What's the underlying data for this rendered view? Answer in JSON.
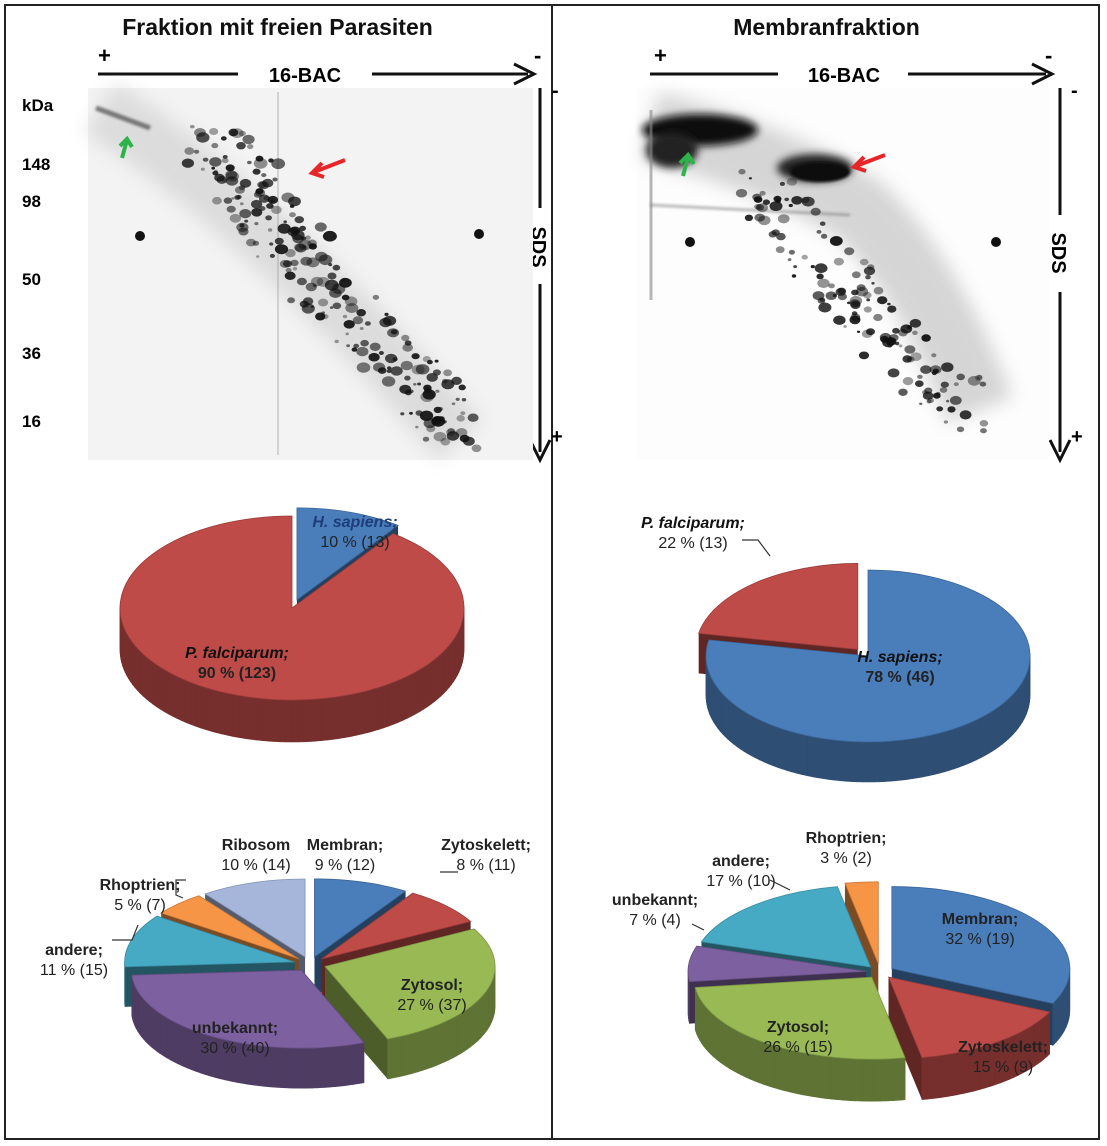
{
  "left_panel": {
    "title": "Fraktion mit freien Parasiten",
    "axis_top": {
      "label": "16-BAC",
      "start_sign": "+",
      "end_sign": "-"
    },
    "axis_right": {
      "label": "SDS",
      "start_sign": "-",
      "end_sign": "+"
    },
    "mw_unit": "kDa",
    "mw_markers": [
      "148",
      "98",
      "50",
      "36",
      "16"
    ]
  },
  "right_panel": {
    "title": "Membranfraktion",
    "axis_top": {
      "label": "16-BAC",
      "start_sign": "+",
      "end_sign": "-"
    },
    "axis_right": {
      "label": "SDS",
      "start_sign": "-",
      "end_sign": "+"
    }
  },
  "colors": {
    "h_sapiens": "#4a7ebb",
    "p_falciparum": "#be4b48",
    "membran": "#4a7ebb",
    "zytoskelett": "#be4b48",
    "zytosol": "#98b954",
    "unbekannt": "#7d60a0",
    "andere": "#46aac5",
    "rhoptrien": "#f69546",
    "ribosom": "#a5b6da",
    "arrow_red": "#e8262a",
    "arrow_green": "#2db34a"
  },
  "chart_data": [
    {
      "type": "pie",
      "panel": "Fraktion mit freien Parasiten",
      "labels": [
        "H. sapiens",
        "P. falciparum"
      ],
      "values": [
        10,
        90
      ],
      "counts": [
        13,
        123
      ],
      "display_labels": [
        {
          "name": "H. sapiens;",
          "value": "10 % (13)"
        },
        {
          "name": "P. falciparum;",
          "value": "90 % (123)"
        }
      ]
    },
    {
      "type": "pie",
      "panel": "Membranfraktion",
      "labels": [
        "H. sapiens",
        "P. falciparum"
      ],
      "values": [
        78,
        22
      ],
      "counts": [
        46,
        13
      ],
      "display_labels": [
        {
          "name": "H. sapiens;",
          "value": "78 % (46)"
        },
        {
          "name": "P. falciparum;",
          "value": "22 % (13)"
        }
      ]
    },
    {
      "type": "pie",
      "panel": "Fraktion mit freien Parasiten",
      "labels": [
        "Membran",
        "Zytoskelett",
        "Zytosol",
        "unbekannt",
        "andere",
        "Rhoptrien",
        "Ribosom"
      ],
      "values": [
        9,
        8,
        27,
        30,
        11,
        5,
        10
      ],
      "counts": [
        12,
        11,
        37,
        40,
        15,
        7,
        14
      ],
      "display_labels": [
        {
          "name": "Membran;",
          "value": "9 % (12)"
        },
        {
          "name": "Zytoskelett;",
          "value": "8 % (11)"
        },
        {
          "name": "Zytosol;",
          "value": "27 % (37)"
        },
        {
          "name": "unbekannt;",
          "value": "30 % (40)"
        },
        {
          "name": "andere;",
          "value": "11 % (15)"
        },
        {
          "name": "Rhoptrien;",
          "value": "5 % (7)"
        },
        {
          "name": "Ribosom",
          "value": "10 % (14)"
        }
      ]
    },
    {
      "type": "pie",
      "panel": "Membranfraktion",
      "labels": [
        "Membran",
        "Zytoskelett",
        "Zytosol",
        "unbekannt",
        "andere",
        "Rhoptrien"
      ],
      "values": [
        32,
        15,
        26,
        7,
        17,
        3
      ],
      "counts": [
        19,
        9,
        15,
        4,
        10,
        2
      ],
      "display_labels": [
        {
          "name": "Membran;",
          "value": "32 % (19)"
        },
        {
          "name": "Zytoskelett;",
          "value": "15 % (9)"
        },
        {
          "name": "Zytosol;",
          "value": "26 % (15)"
        },
        {
          "name": "unbekannt;",
          "value": "7 % (4)"
        },
        {
          "name": "andere;",
          "value": "17 % (10)"
        },
        {
          "name": "Rhoptrien;",
          "value": "3 % (2)"
        }
      ]
    }
  ]
}
